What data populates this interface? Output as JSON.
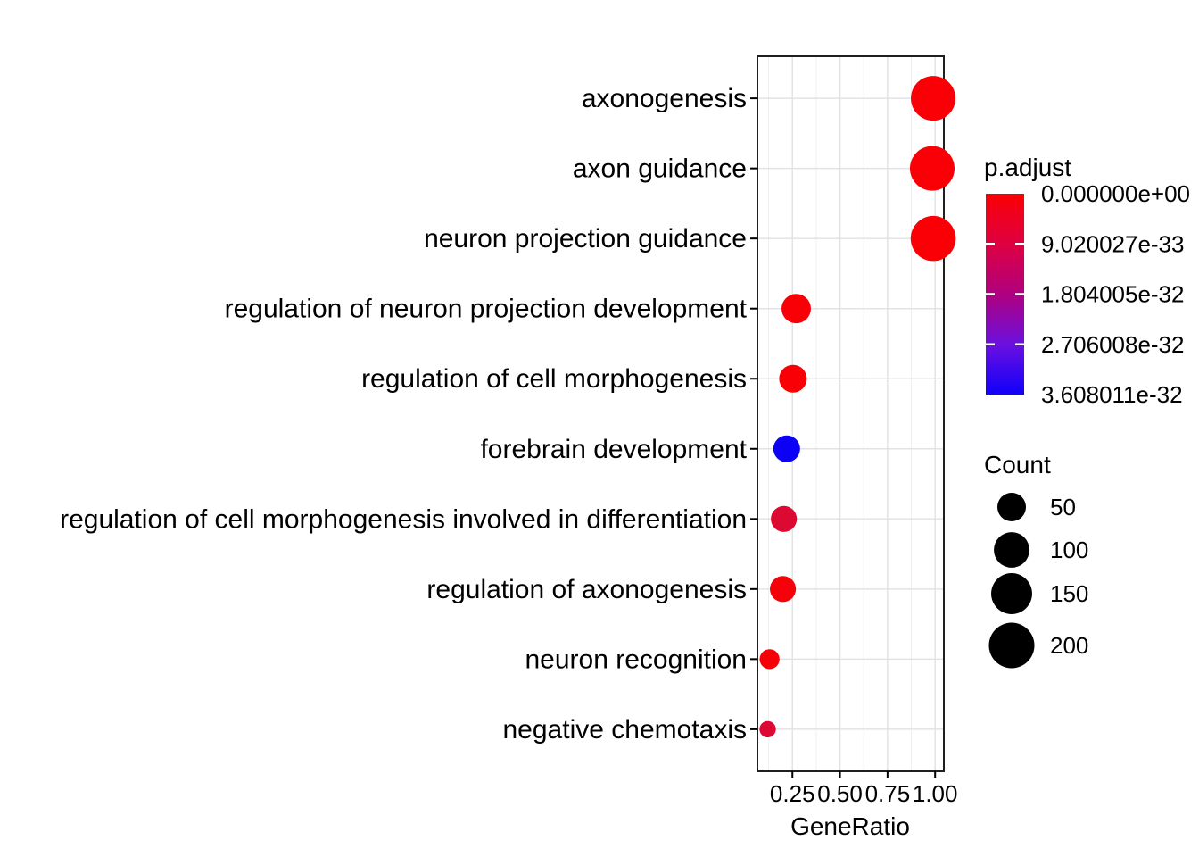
{
  "chart_data": {
    "type": "scatter",
    "title": "",
    "xlabel": "GeneRatio",
    "ylabel": "",
    "legend_position": "right",
    "grid": true,
    "xlim": [
      0.066,
      1.046
    ],
    "x_ticks": [
      0.25,
      0.5,
      0.75,
      1.0
    ],
    "x_tick_labels": [
      "0.25",
      "0.50",
      "0.75",
      "1.00"
    ],
    "x_minor_ticks": [
      0.125,
      0.375,
      0.625,
      0.875
    ],
    "categories": [
      "axonogenesis",
      "axon guidance",
      "neuron projection guidance",
      "regulation of neuron projection development",
      "regulation of cell morphogenesis",
      "forebrain development",
      "regulation of cell morphogenesis involved in differentiation",
      "regulation of axonogenesis",
      "neuron recognition",
      "negative chemotaxis"
    ],
    "points": [
      {
        "label": "axonogenesis",
        "gene_ratio": 0.99,
        "count": 190,
        "p_adjust": 0,
        "color": "#fa0006"
      },
      {
        "label": "axon guidance",
        "gene_ratio": 0.985,
        "count": 190,
        "p_adjust": 0,
        "color": "#fa0006"
      },
      {
        "label": "neuron projection guidance",
        "gene_ratio": 0.99,
        "count": 195,
        "p_adjust": 0,
        "color": "#fa0006"
      },
      {
        "label": "regulation of neuron projection development",
        "gene_ratio": 0.27,
        "count": 55,
        "p_adjust": 1e-33,
        "color": "#f90007"
      },
      {
        "label": "regulation of cell morphogenesis",
        "gene_ratio": 0.253,
        "count": 45,
        "p_adjust": 1e-33,
        "color": "#f90007"
      },
      {
        "label": "forebrain development",
        "gene_ratio": 0.22,
        "count": 40,
        "p_adjust": 3.6e-32,
        "color": "#0d00f7"
      },
      {
        "label": "regulation of cell morphogenesis involved in differentiation",
        "gene_ratio": 0.205,
        "count": 36,
        "p_adjust": 5e-33,
        "color": "#dc0a32"
      },
      {
        "label": "regulation of axonogenesis",
        "gene_ratio": 0.2,
        "count": 36,
        "p_adjust": 1.5e-33,
        "color": "#f60109"
      },
      {
        "label": "neuron recognition",
        "gene_ratio": 0.13,
        "count": 12,
        "p_adjust": 2e-33,
        "color": "#f80008"
      },
      {
        "label": "negative chemotaxis",
        "gene_ratio": 0.12,
        "count": 4,
        "p_adjust": 5e-33,
        "color": "#dc0a32"
      }
    ]
  },
  "legends": {
    "p_adjust": {
      "title": "p.adjust",
      "tick_labels": [
        "0.000000e+00",
        "9.020027e-33",
        "1.804005e-32",
        "2.706008e-32",
        "3.608011e-32"
      ],
      "gradient_stops": [
        "#fb0004",
        "#df0041",
        "#b0007f",
        "#6b10df",
        "#1000fb"
      ]
    },
    "count": {
      "title": "Count",
      "entries": [
        {
          "label": "50",
          "count": 50
        },
        {
          "label": "100",
          "count": 100
        },
        {
          "label": "150",
          "count": 150
        },
        {
          "label": "200",
          "count": 200
        }
      ],
      "dot_color": "#000000"
    }
  },
  "style": {
    "background": "#ffffff",
    "panel_bg": "#ffffff",
    "panel_border": "#1f1f1f",
    "grid_major": "#e3e3e3",
    "grid_minor": "#f0f0f0",
    "tick_color": "#000000",
    "text_color": "#000000"
  }
}
